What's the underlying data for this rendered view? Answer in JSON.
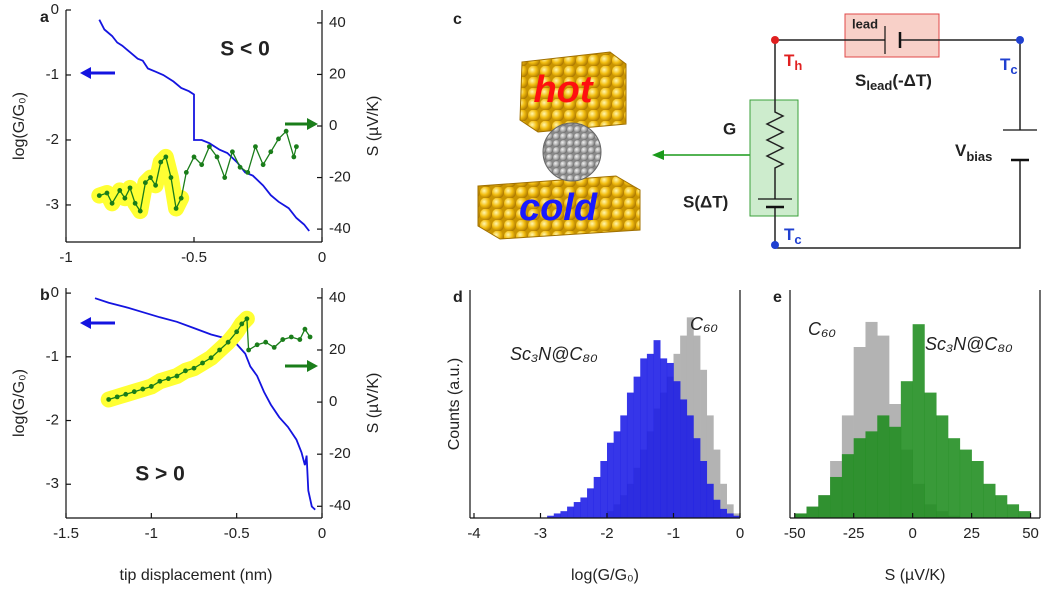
{
  "chart_data": [
    {
      "type": "line",
      "panel": "a",
      "annotation": "S < 0",
      "ylabel": "log(G/G₀)",
      "y2label": "S (µV/K)",
      "xlim": [
        -1,
        0
      ],
      "xticks": [
        -1,
        -0.5,
        0
      ],
      "ylim": [
        -3.57,
        0
      ],
      "yticks": [
        0,
        -1,
        -2,
        -3
      ],
      "y2lim": [
        -45,
        45
      ],
      "y2ticks": [
        40,
        20,
        0,
        -20,
        -40
      ],
      "series": [
        {
          "color": "#1414e0",
          "x": [
            -0.87,
            -0.85,
            -0.82,
            -0.8,
            -0.78,
            -0.75,
            -0.72,
            -0.7,
            -0.68,
            -0.65,
            -0.62,
            -0.6,
            -0.58,
            -0.55,
            -0.52,
            -0.5,
            -0.5,
            -0.47,
            -0.44,
            -0.4,
            -0.37,
            -0.33,
            -0.3,
            -0.27,
            -0.23,
            -0.2,
            -0.17,
            -0.13,
            -0.1,
            -0.07,
            -0.05
          ],
          "values": [
            -0.15,
            -0.3,
            -0.4,
            -0.5,
            -0.55,
            -0.65,
            -0.75,
            -0.78,
            -0.9,
            -0.95,
            -1.0,
            -1.05,
            -1.1,
            -1.2,
            -1.25,
            -1.3,
            -2.0,
            -2.0,
            -2.05,
            -2.15,
            -2.2,
            -2.35,
            -2.5,
            -2.55,
            -2.7,
            -2.85,
            -2.95,
            -3.05,
            -3.2,
            -3.3,
            -3.4
          ]
        },
        {
          "color": "#1a7d1a",
          "axis": "y2",
          "markers": true,
          "highlight_color": "#ffff33",
          "x": [
            -0.87,
            -0.84,
            -0.82,
            -0.79,
            -0.77,
            -0.75,
            -0.73,
            -0.71,
            -0.69,
            -0.67,
            -0.65,
            -0.63,
            -0.61,
            -0.59,
            -0.57,
            -0.55,
            -0.53,
            -0.5,
            -0.47,
            -0.44,
            -0.41,
            -0.38,
            -0.35,
            -0.32,
            -0.29,
            -0.26,
            -0.23,
            -0.2,
            -0.17,
            -0.14,
            -0.11,
            -0.1
          ],
          "values": [
            -27,
            -26,
            -30,
            -25,
            -28,
            -24,
            -30,
            -33,
            -22,
            -20,
            -23,
            -14,
            -12,
            -20,
            -32,
            -28,
            -18,
            -12,
            -15,
            -8,
            -12,
            -20,
            -10,
            -16,
            -18,
            -8,
            -15,
            -10,
            -5,
            -2,
            -12,
            -8
          ]
        }
      ]
    },
    {
      "type": "line",
      "panel": "b",
      "annotation": "S > 0",
      "xlabel": "tip displacement (nm)",
      "ylabel": "log(G/G₀)",
      "y2label": "S (µV/K)",
      "xlim": [
        -1.5,
        0
      ],
      "xticks": [
        -1.5,
        -1,
        -0.5,
        0
      ],
      "ylim": [
        -3.53,
        0.08
      ],
      "yticks": [
        0,
        -1,
        -2,
        -3
      ],
      "y2lim": [
        -44.5,
        43.8
      ],
      "y2ticks": [
        40,
        20,
        0,
        -20,
        -40
      ],
      "series": [
        {
          "color": "#1414e0",
          "x": [
            -1.33,
            -1.25,
            -1.15,
            -1.05,
            -0.95,
            -0.85,
            -0.75,
            -0.65,
            -0.55,
            -0.5,
            -0.45,
            -0.42,
            -0.38,
            -0.34,
            -0.3,
            -0.25,
            -0.2,
            -0.15,
            -0.12,
            -0.1,
            -0.09,
            -0.08,
            -0.06,
            -0.04
          ],
          "values": [
            -0.08,
            -0.15,
            -0.22,
            -0.3,
            -0.38,
            -0.45,
            -0.55,
            -0.65,
            -0.72,
            -0.8,
            -0.95,
            -1.15,
            -1.3,
            -1.55,
            -1.75,
            -1.95,
            -2.1,
            -2.3,
            -2.5,
            -2.7,
            -2.55,
            -3.1,
            -3.35,
            -3.4
          ]
        },
        {
          "color": "#1a7d1a",
          "axis": "y2",
          "markers": true,
          "highlight_color": "#ffff33",
          "x": [
            -1.25,
            -1.2,
            -1.15,
            -1.1,
            -1.05,
            -1.0,
            -0.95,
            -0.9,
            -0.85,
            -0.8,
            -0.75,
            -0.7,
            -0.65,
            -0.6,
            -0.55,
            -0.5,
            -0.47,
            -0.44,
            -0.43,
            -0.38,
            -0.33,
            -0.28,
            -0.23,
            -0.18,
            -0.13,
            -0.1,
            -0.07
          ],
          "values": [
            1,
            2,
            3,
            4,
            5,
            6,
            8,
            9,
            10,
            12,
            13,
            15,
            17,
            20,
            23,
            27,
            30,
            32,
            20,
            22,
            23,
            21,
            24,
            25,
            24,
            28,
            25
          ]
        }
      ]
    },
    {
      "type": "histogram",
      "panel": "d",
      "xlabel": "log(G/G₀)",
      "ylabel": "Counts (a.u.)",
      "xlim": [
        -4.06,
        0
      ],
      "xticks": [
        -4,
        -3,
        -2,
        -1,
        0
      ],
      "ylim": [
        0,
        100
      ],
      "bins": [
        -3,
        -2.9,
        -2.8,
        -2.7,
        -2.6,
        -2.5,
        -2.4,
        -2.3,
        -2.2,
        -2.1,
        -2,
        -1.9,
        -1.8,
        -1.7,
        -1.6,
        -1.5,
        -1.4,
        -1.3,
        -1.2,
        -1.1,
        -1,
        -0.9,
        -0.8,
        -0.7,
        -0.6,
        -0.5,
        -0.4,
        -0.3,
        -0.2,
        -0.1,
        0
      ],
      "series": [
        {
          "name": "C₆₀",
          "color": "#b3b3b3",
          "values": [
            0,
            0,
            0,
            0,
            0,
            0,
            0,
            0,
            0,
            0,
            3,
            6,
            10,
            15,
            22,
            30,
            38,
            48,
            55,
            62,
            72,
            80,
            88,
            80,
            65,
            45,
            30,
            15,
            6,
            2
          ]
        },
        {
          "name": "Sc₃N@C₈₀",
          "color": "#1a1ae6",
          "values": [
            0,
            1,
            2,
            3,
            5,
            7,
            9,
            13,
            18,
            25,
            33,
            38,
            45,
            55,
            62,
            70,
            72,
            78,
            70,
            68,
            60,
            52,
            45,
            35,
            25,
            15,
            8,
            4,
            2,
            1
          ]
        }
      ]
    },
    {
      "type": "histogram",
      "panel": "e",
      "xlabel": "S (µV/K)",
      "xlim": [
        -52,
        54
      ],
      "xticks": [
        -50,
        -25,
        0,
        25,
        50
      ],
      "ylim": [
        0,
        100
      ],
      "bins": [
        -50,
        -45,
        -40,
        -35,
        -30,
        -25,
        -20,
        -15,
        -10,
        -5,
        0,
        5,
        10,
        15,
        20,
        25,
        30,
        35,
        40,
        45,
        50
      ],
      "series": [
        {
          "name": "C₆₀",
          "color": "#b3b3b3",
          "values": [
            2,
            5,
            10,
            25,
            45,
            75,
            86,
            80,
            50,
            30,
            15,
            6,
            3,
            1,
            0,
            0,
            0,
            0,
            0,
            0
          ]
        },
        {
          "name": "Sc₃N@C₈₀",
          "color": "#1e8c1e",
          "values": [
            2,
            5,
            10,
            18,
            28,
            35,
            38,
            45,
            40,
            60,
            85,
            55,
            45,
            35,
            30,
            25,
            15,
            10,
            6,
            3
          ]
        }
      ]
    }
  ],
  "diagram": {
    "label": "c",
    "hot": "hot",
    "cold": "cold",
    "lead": "lead",
    "t_hot": {
      "main": "T",
      "sub": "h"
    },
    "t_cold_top": {
      "main": "T",
      "sub": "c"
    },
    "s_lead": {
      "main": "S",
      "sub": "lead",
      "rest": "(-ΔT)"
    },
    "g": "G",
    "s_junction": "S(ΔT)",
    "t_cold_bottom": {
      "main": "T",
      "sub": "c"
    },
    "v_bias": {
      "main": "V",
      "sub": "bias"
    }
  }
}
